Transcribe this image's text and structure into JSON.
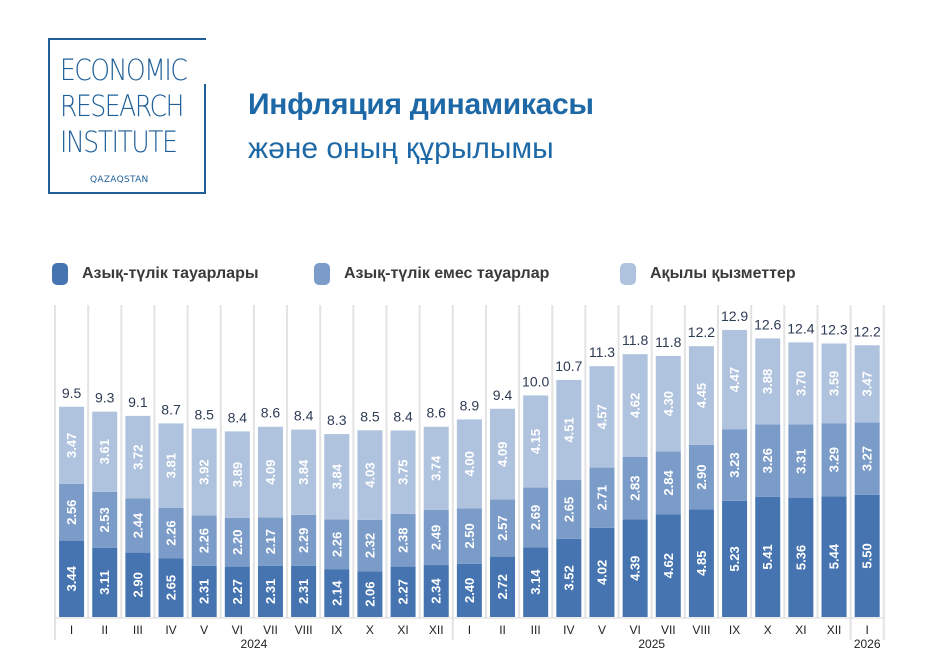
{
  "logo": {
    "lines": [
      "ECONOMIC",
      "RESEARCH",
      "INSTITUTE"
    ],
    "sub": "QAZAQSTAN"
  },
  "header": {
    "title_line1": "Инфляция динамикасы",
    "title_line2": "және оның құрылымы"
  },
  "colors": {
    "food": "#4674b0",
    "nonfood": "#7b9cc9",
    "services": "#b0c3de",
    "title": "#1d68a6",
    "logo": "#1f5f99",
    "total_label": "#2e3b55",
    "gridline": "#e3e3e3"
  },
  "chart_data": {
    "type": "bar",
    "stacked": true,
    "title": "Инфляция динамикасы және оның құрылымы",
    "xlabel": "",
    "ylabel": "",
    "ylim": [
      0,
      14
    ],
    "grid": "vertical separators between months",
    "legend_position": "top",
    "categories": [
      "I",
      "II",
      "III",
      "IV",
      "V",
      "VI",
      "VII",
      "VIII",
      "IX",
      "X",
      "XI",
      "XII",
      "I",
      "II",
      "III",
      "IV",
      "V",
      "VI",
      "VII",
      "VIII",
      "IX",
      "X",
      "XI",
      "XII",
      "I"
    ],
    "years": [
      {
        "label": "2024",
        "start": 0,
        "end": 11
      },
      {
        "label": "2025",
        "start": 12,
        "end": 23
      },
      {
        "label": "2026",
        "start": 24,
        "end": 24
      }
    ],
    "series": [
      {
        "name": "Азық-түлік тауарлары",
        "key": "food",
        "values": [
          3.44,
          3.11,
          2.9,
          2.65,
          2.31,
          2.27,
          2.31,
          2.31,
          2.14,
          2.06,
          2.27,
          2.34,
          2.4,
          2.72,
          3.14,
          3.52,
          4.02,
          4.39,
          4.62,
          4.85,
          5.23,
          5.41,
          5.36,
          5.44,
          5.5
        ]
      },
      {
        "name": "Азық-түлік емес тауарлар",
        "key": "nonfood",
        "values": [
          2.56,
          2.53,
          2.44,
          2.26,
          2.26,
          2.2,
          2.17,
          2.29,
          2.26,
          2.32,
          2.38,
          2.49,
          2.5,
          2.57,
          2.69,
          2.65,
          2.71,
          2.83,
          2.84,
          2.9,
          3.23,
          3.26,
          3.31,
          3.29,
          3.27
        ]
      },
      {
        "name": "Ақылы қызметтер",
        "key": "services",
        "values": [
          3.47,
          3.61,
          3.72,
          3.81,
          3.92,
          3.89,
          4.09,
          3.84,
          3.84,
          4.03,
          3.75,
          3.74,
          4.0,
          4.09,
          4.15,
          4.51,
          4.57,
          4.62,
          4.3,
          4.45,
          4.47,
          3.88,
          3.7,
          3.59,
          3.47
        ]
      }
    ],
    "totals": [
      "9.5",
      "9.3",
      "9.1",
      "8.7",
      "8.5",
      "8.4",
      "8.6",
      "8.4",
      "8.3",
      "8.5",
      "8.4",
      "8.6",
      "8.9",
      "9.4",
      "10.0",
      "10.7",
      "11.3",
      "11.8",
      "11.8",
      "12.2",
      "12.9",
      "12.6",
      "12.4",
      "12.3",
      "12.2"
    ]
  }
}
